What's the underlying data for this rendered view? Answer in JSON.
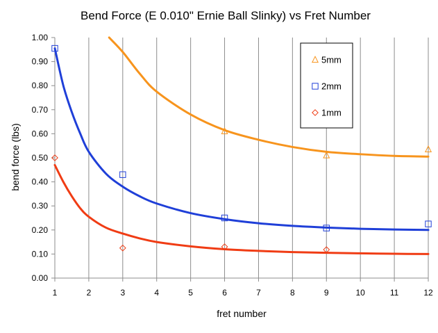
{
  "chart_data": {
    "type": "scatter",
    "title": "Bend Force (E 0.010\" Ernie Ball Slinky) vs Fret Number",
    "xlabel": "fret number",
    "ylabel": "bend force (lbs)",
    "xlim": [
      1,
      12
    ],
    "ylim": [
      0,
      1
    ],
    "x_ticks": [
      1,
      2,
      3,
      4,
      5,
      6,
      7,
      8,
      9,
      10,
      11,
      12
    ],
    "x_tick_labels": [
      "1",
      "2",
      "3",
      "4",
      "5",
      "6",
      "7",
      "8",
      "9",
      "10",
      "11",
      "12"
    ],
    "y_ticks": [
      0,
      0.1,
      0.2,
      0.3,
      0.4,
      0.5,
      0.6,
      0.7,
      0.8,
      0.9,
      1.0
    ],
    "y_tick_labels": [
      "0.00",
      "0.10",
      "0.20",
      "0.30",
      "0.40",
      "0.50",
      "0.60",
      "0.70",
      "0.80",
      "0.90",
      "1.00"
    ],
    "grid": "vertical",
    "legend_position": "top-right",
    "series": [
      {
        "name": "5mm",
        "color": "#f7941d",
        "marker": "triangle",
        "points": [
          [
            6,
            0.61
          ],
          [
            9,
            0.51
          ],
          [
            12,
            0.535
          ]
        ],
        "fit": [
          [
            2.6,
            1.0
          ],
          [
            3,
            0.94
          ],
          [
            3.5,
            0.85
          ],
          [
            4,
            0.775
          ],
          [
            5,
            0.68
          ],
          [
            6,
            0.615
          ],
          [
            7,
            0.575
          ],
          [
            8,
            0.545
          ],
          [
            9,
            0.525
          ],
          [
            10,
            0.515
          ],
          [
            11,
            0.508
          ],
          [
            12,
            0.505
          ]
        ]
      },
      {
        "name": "2mm",
        "color": "#1f3fd8",
        "marker": "square",
        "points": [
          [
            1,
            0.955
          ],
          [
            3,
            0.43
          ],
          [
            6,
            0.25
          ],
          [
            9,
            0.208
          ],
          [
            12,
            0.225
          ]
        ],
        "fit": [
          [
            1,
            0.955
          ],
          [
            1.25,
            0.8
          ],
          [
            1.5,
            0.69
          ],
          [
            1.75,
            0.6
          ],
          [
            2,
            0.525
          ],
          [
            2.5,
            0.435
          ],
          [
            3,
            0.38
          ],
          [
            3.5,
            0.34
          ],
          [
            4,
            0.31
          ],
          [
            5,
            0.27
          ],
          [
            6,
            0.245
          ],
          [
            7,
            0.228
          ],
          [
            8,
            0.217
          ],
          [
            9,
            0.21
          ],
          [
            10,
            0.205
          ],
          [
            11,
            0.202
          ],
          [
            12,
            0.2
          ]
        ]
      },
      {
        "name": "1mm",
        "color": "#f03c14",
        "marker": "diamond",
        "points": [
          [
            1,
            0.5
          ],
          [
            3,
            0.125
          ],
          [
            6,
            0.13
          ],
          [
            9,
            0.118
          ]
        ],
        "fit": [
          [
            1,
            0.47
          ],
          [
            1.25,
            0.4
          ],
          [
            1.5,
            0.34
          ],
          [
            1.75,
            0.29
          ],
          [
            2,
            0.255
          ],
          [
            2.5,
            0.21
          ],
          [
            3,
            0.185
          ],
          [
            3.5,
            0.165
          ],
          [
            4,
            0.15
          ],
          [
            5,
            0.132
          ],
          [
            6,
            0.12
          ],
          [
            7,
            0.113
          ],
          [
            8,
            0.108
          ],
          [
            9,
            0.105
          ],
          [
            10,
            0.103
          ],
          [
            11,
            0.101
          ],
          [
            12,
            0.1
          ]
        ]
      }
    ]
  }
}
